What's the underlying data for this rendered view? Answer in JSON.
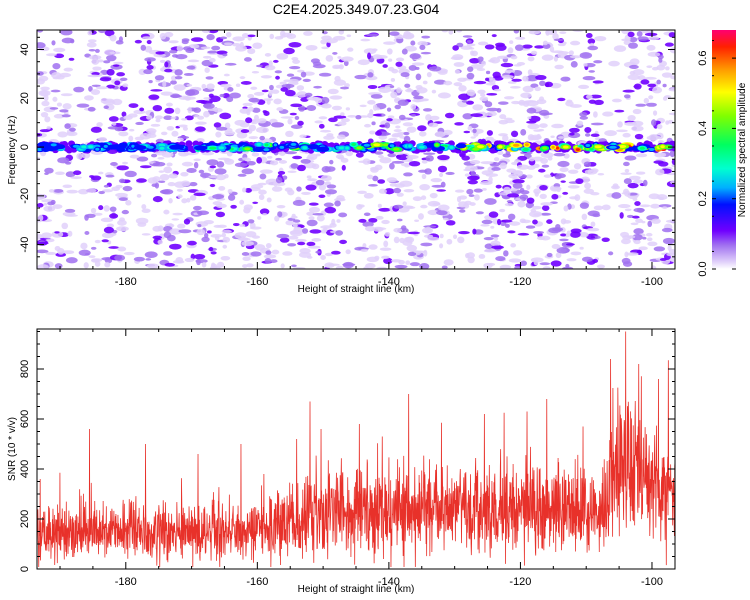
{
  "chart_data": [
    {
      "type": "heatmap",
      "title": "C2E4.2025.349.07.23.G04",
      "xlabel": "Height of straight line (km)",
      "ylabel": "Frequency (Hz)",
      "xlim": [
        -193.5,
        -96.5
      ],
      "ylim": [
        -50,
        48
      ],
      "x_ticks": [
        -180,
        -160,
        -140,
        -120,
        -100
      ],
      "y_ticks": [
        -40,
        -20,
        0,
        20,
        40
      ],
      "x_tick_labels": [
        "-180",
        "-160",
        "-140",
        "-120",
        "-100"
      ],
      "y_tick_labels": [
        "-40",
        "-20",
        "0",
        "20",
        "40"
      ],
      "ridge_frequency_hz": 0,
      "colorbar": {
        "label": "Normalized spectral amplitude",
        "range": [
          0.0,
          0.68
        ],
        "ticks": [
          0.0,
          0.2,
          0.4,
          0.6
        ],
        "tick_labels": [
          "0.0",
          "0.2",
          "0.4",
          "0.6"
        ],
        "colormap": [
          "#ffffff",
          "#e0d0fa",
          "#a070f0",
          "#7000ff",
          "#0010ff",
          "#00b0ff",
          "#00ffd0",
          "#00ff60",
          "#80ff00",
          "#ffff00",
          "#ffa000",
          "#ff2000",
          "#ff0070"
        ]
      }
    },
    {
      "type": "line",
      "xlabel": "Height of straight line (km)",
      "ylabel": "SNR (10 * v/v)",
      "xlim": [
        -193.5,
        -96.5
      ],
      "ylim": [
        0,
        960
      ],
      "x_ticks": [
        -180,
        -160,
        -140,
        -120,
        -100
      ],
      "y_ticks": [
        0,
        200,
        400,
        600,
        800
      ],
      "x_tick_labels": [
        "-180",
        "-160",
        "-140",
        "-120",
        "-100"
      ],
      "y_tick_labels": [
        "0",
        "200",
        "400",
        "600",
        "800"
      ],
      "line_color": "#e8312a",
      "envelope": {
        "x": [
          -193.5,
          -180,
          -170,
          -160,
          -155,
          -150,
          -145,
          -140,
          -130,
          -120,
          -115,
          -110,
          -108,
          -107,
          -106,
          -104,
          -102,
          -100,
          -98,
          -96.5
        ],
        "baseline": [
          150,
          150,
          145,
          155,
          175,
          215,
          220,
          215,
          230,
          230,
          250,
          240,
          200,
          260,
          420,
          430,
          400,
          340,
          300,
          320
        ],
        "spread": [
          80,
          80,
          80,
          85,
          100,
          125,
          125,
          120,
          125,
          125,
          135,
          130,
          110,
          150,
          200,
          200,
          190,
          170,
          150,
          160
        ]
      },
      "peaks": [
        {
          "x": -193,
          "y": 360
        },
        {
          "x": -190,
          "y": 385
        },
        {
          "x": -185.5,
          "y": 560
        },
        {
          "x": -177,
          "y": 500
        },
        {
          "x": -169,
          "y": 460
        },
        {
          "x": -162.5,
          "y": 500
        },
        {
          "x": -159,
          "y": 380
        },
        {
          "x": -154,
          "y": 520
        },
        {
          "x": -152,
          "y": 670
        },
        {
          "x": -150.3,
          "y": 560
        },
        {
          "x": -144.5,
          "y": 580
        },
        {
          "x": -141,
          "y": 530
        },
        {
          "x": -137,
          "y": 700
        },
        {
          "x": -132,
          "y": 585
        },
        {
          "x": -125.5,
          "y": 620
        },
        {
          "x": -122.5,
          "y": 625
        },
        {
          "x": -119,
          "y": 630
        },
        {
          "x": -116,
          "y": 680
        },
        {
          "x": -110.5,
          "y": 570
        },
        {
          "x": -106.3,
          "y": 840
        },
        {
          "x": -104,
          "y": 950
        },
        {
          "x": -102,
          "y": 820
        },
        {
          "x": -99,
          "y": 760
        },
        {
          "x": -97.5,
          "y": 835
        }
      ]
    }
  ]
}
